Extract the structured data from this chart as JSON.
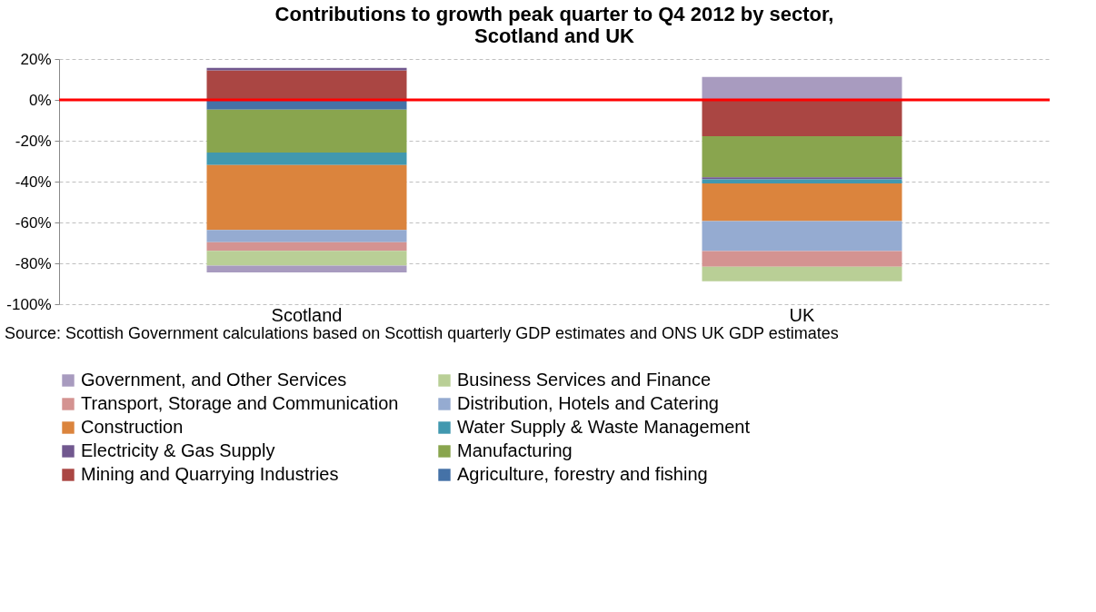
{
  "chart_data": {
    "type": "bar",
    "stacked": true,
    "title": "Contributions to growth peak quarter to Q4 2012 by sector,\nScotland and UK",
    "categories": [
      "Scotland",
      "UK"
    ],
    "series": [
      {
        "name": "Agriculture, forestry and fishing",
        "color": "#4572a7",
        "values": [
          -4.8,
          null
        ]
      },
      {
        "name": "Mining and Quarrying Industries",
        "color": "#aa4643",
        "values": [
          14.4,
          -17.8
        ]
      },
      {
        "name": "Manufacturing",
        "color": "#89a54e",
        "values": [
          -21.0,
          -20.1
        ]
      },
      {
        "name": "Electricity & Gas Supply",
        "color": "#71588f",
        "values": [
          1.3,
          -1.0
        ]
      },
      {
        "name": "Water Supply & Waste Management",
        "color": "#4198af",
        "values": [
          -6.1,
          -2.0
        ]
      },
      {
        "name": "Construction",
        "color": "#db843d",
        "values": [
          -31.8,
          -18.4
        ]
      },
      {
        "name": "Distribution, Hotels and Catering",
        "color": "#95abd1",
        "values": [
          -6.0,
          -14.7
        ]
      },
      {
        "name": "Transport, Storage and Communication",
        "color": "#d49391",
        "values": [
          -4.2,
          -7.7
        ]
      },
      {
        "name": "Business Services and Finance",
        "color": "#b9cf96",
        "values": [
          -7.2,
          -7.1
        ]
      },
      {
        "name": "Government, and Other Services",
        "color": "#a89bbf",
        "values": [
          -3.3,
          11.2
        ]
      }
    ],
    "ylim": [
      -100,
      20
    ],
    "yticks": [
      {
        "value": -100,
        "label": "-100%"
      },
      {
        "value": -80,
        "label": "-80%"
      },
      {
        "value": -60,
        "label": "-60%"
      },
      {
        "value": -40,
        "label": "-40%"
      },
      {
        "value": -20,
        "label": "-20%"
      },
      {
        "value": 0,
        "label": "0%"
      },
      {
        "value": 20,
        "label": "20%"
      }
    ],
    "grid": "y",
    "legend": "bottom",
    "ref_lines": [
      {
        "axis": "y",
        "value": 0,
        "color": "#ff0000"
      }
    ],
    "annotations": [
      "Source: Scottish Government calculations based on Scottish quarterly GDP estimates and ONS UK GDP estimates"
    ]
  }
}
